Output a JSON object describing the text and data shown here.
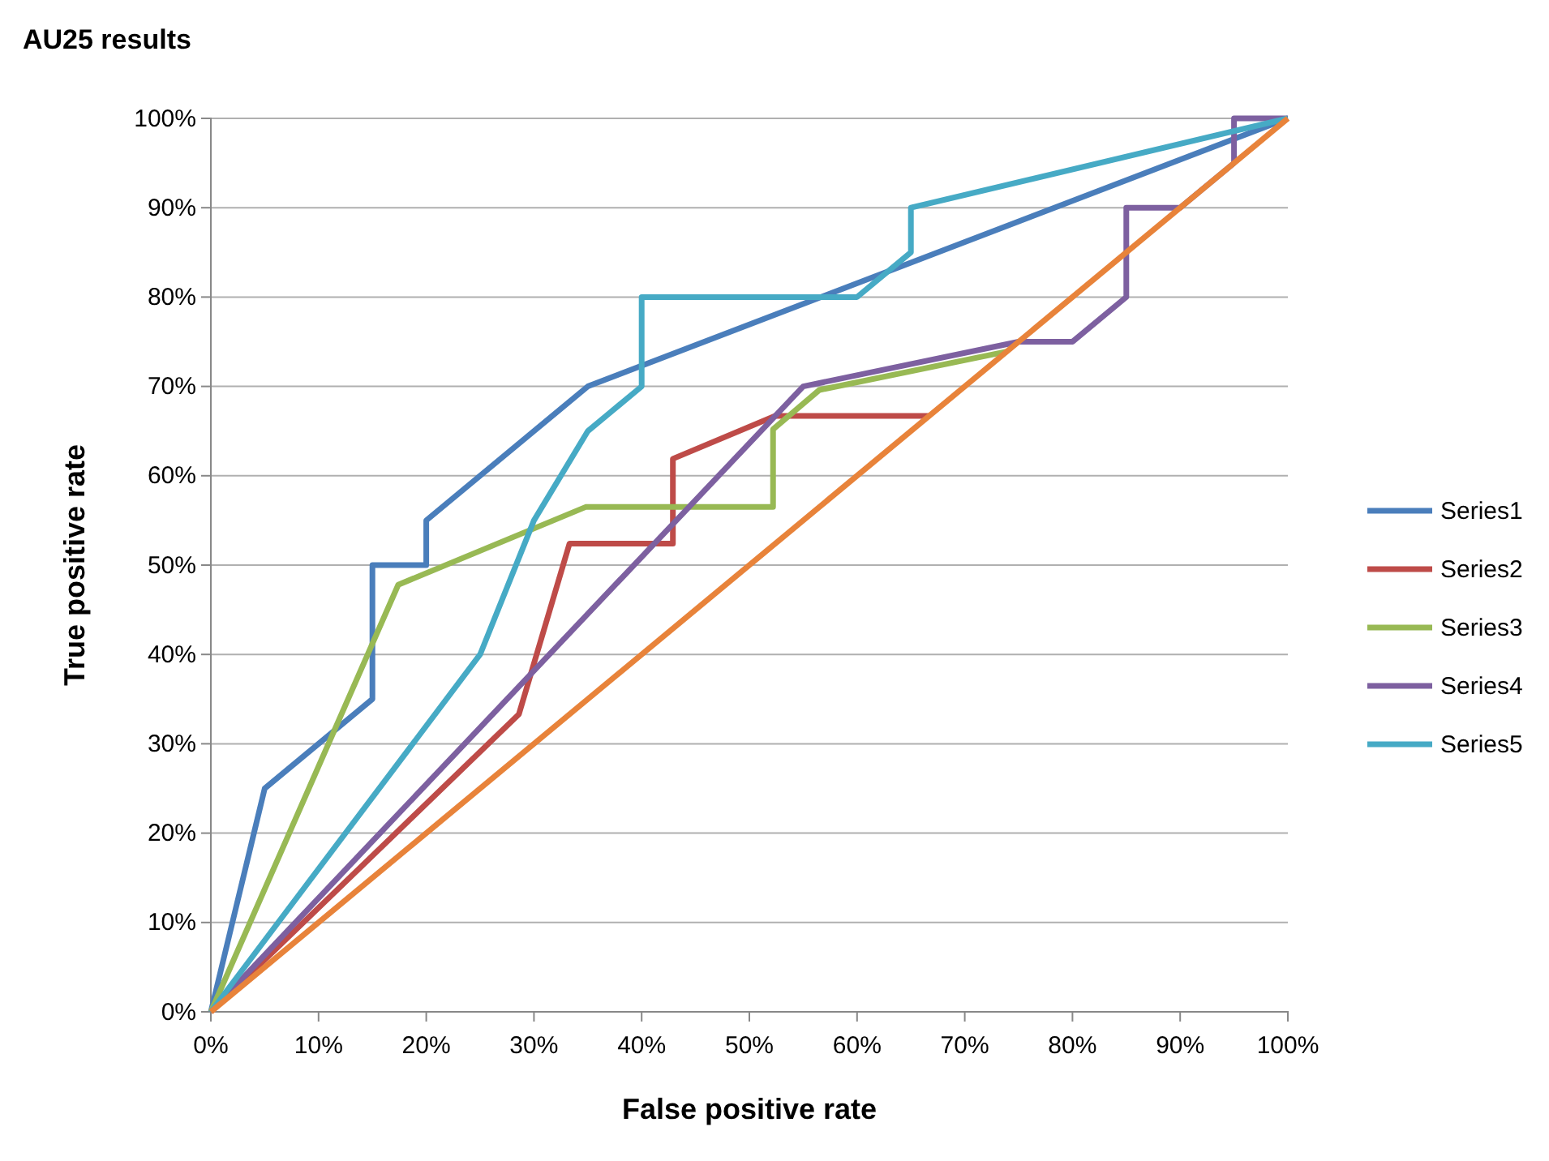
{
  "chart_data": {
    "type": "line",
    "title": "AU25 results",
    "xlabel": "False positive rate",
    "ylabel": "True positive rate",
    "xlim": [
      0,
      100
    ],
    "ylim": [
      0,
      100
    ],
    "xticks": [
      {
        "value": 0,
        "label": "0%"
      },
      {
        "value": 10,
        "label": "10%"
      },
      {
        "value": 20,
        "label": "20%"
      },
      {
        "value": 30,
        "label": "30%"
      },
      {
        "value": 40,
        "label": "40%"
      },
      {
        "value": 50,
        "label": "50%"
      },
      {
        "value": 60,
        "label": "60%"
      },
      {
        "value": 70,
        "label": "70%"
      },
      {
        "value": 80,
        "label": "80%"
      },
      {
        "value": 90,
        "label": "90%"
      },
      {
        "value": 100,
        "label": "100%"
      }
    ],
    "yticks": [
      {
        "value": 0,
        "label": "0%"
      },
      {
        "value": 10,
        "label": "10%"
      },
      {
        "value": 20,
        "label": "20%"
      },
      {
        "value": 30,
        "label": "30%"
      },
      {
        "value": 40,
        "label": "40%"
      },
      {
        "value": 50,
        "label": "50%"
      },
      {
        "value": 60,
        "label": "60%"
      },
      {
        "value": 70,
        "label": "70%"
      },
      {
        "value": 80,
        "label": "80%"
      },
      {
        "value": 90,
        "label": "90%"
      },
      {
        "value": 100,
        "label": "100%"
      }
    ],
    "grid": "y",
    "legend": "right",
    "marker": "none",
    "line_style": "solid",
    "series": [
      {
        "name": "Series1",
        "color": "#4a7ebb",
        "x": [
          0,
          5,
          15,
          15,
          20,
          20,
          35,
          100
        ],
        "values": [
          0,
          25,
          35,
          50,
          50,
          55,
          70,
          100
        ]
      },
      {
        "name": "Series2",
        "color": "#be4b48",
        "x": [
          0,
          28.6,
          33.3,
          42.9,
          42.9,
          52.4,
          66.7
        ],
        "values": [
          0,
          33.3,
          52.4,
          52.4,
          61.9,
          66.7,
          66.7
        ]
      },
      {
        "name": "Series3",
        "color": "#98b954",
        "x": [
          0,
          17.4,
          34.8,
          52.2,
          52.2,
          56.5,
          73.9
        ],
        "values": [
          0,
          47.8,
          56.5,
          56.5,
          65.2,
          69.6,
          73.9
        ]
      },
      {
        "name": "Series4",
        "color": "#7d60a0",
        "x": [
          0,
          55,
          75,
          80,
          85,
          85,
          90,
          95,
          95,
          100
        ],
        "values": [
          0,
          70,
          75,
          75,
          80,
          90,
          90,
          95,
          100,
          100
        ]
      },
      {
        "name": "Series5",
        "color": "#46aac5",
        "x": [
          0,
          25,
          30,
          35,
          40,
          40,
          60,
          65,
          65,
          100
        ],
        "values": [
          0,
          40,
          55,
          65,
          70,
          80,
          80,
          85,
          90,
          100
        ]
      },
      {
        "color": "#e8833a",
        "x": [
          0,
          100
        ],
        "values": [
          0,
          100
        ]
      }
    ]
  }
}
